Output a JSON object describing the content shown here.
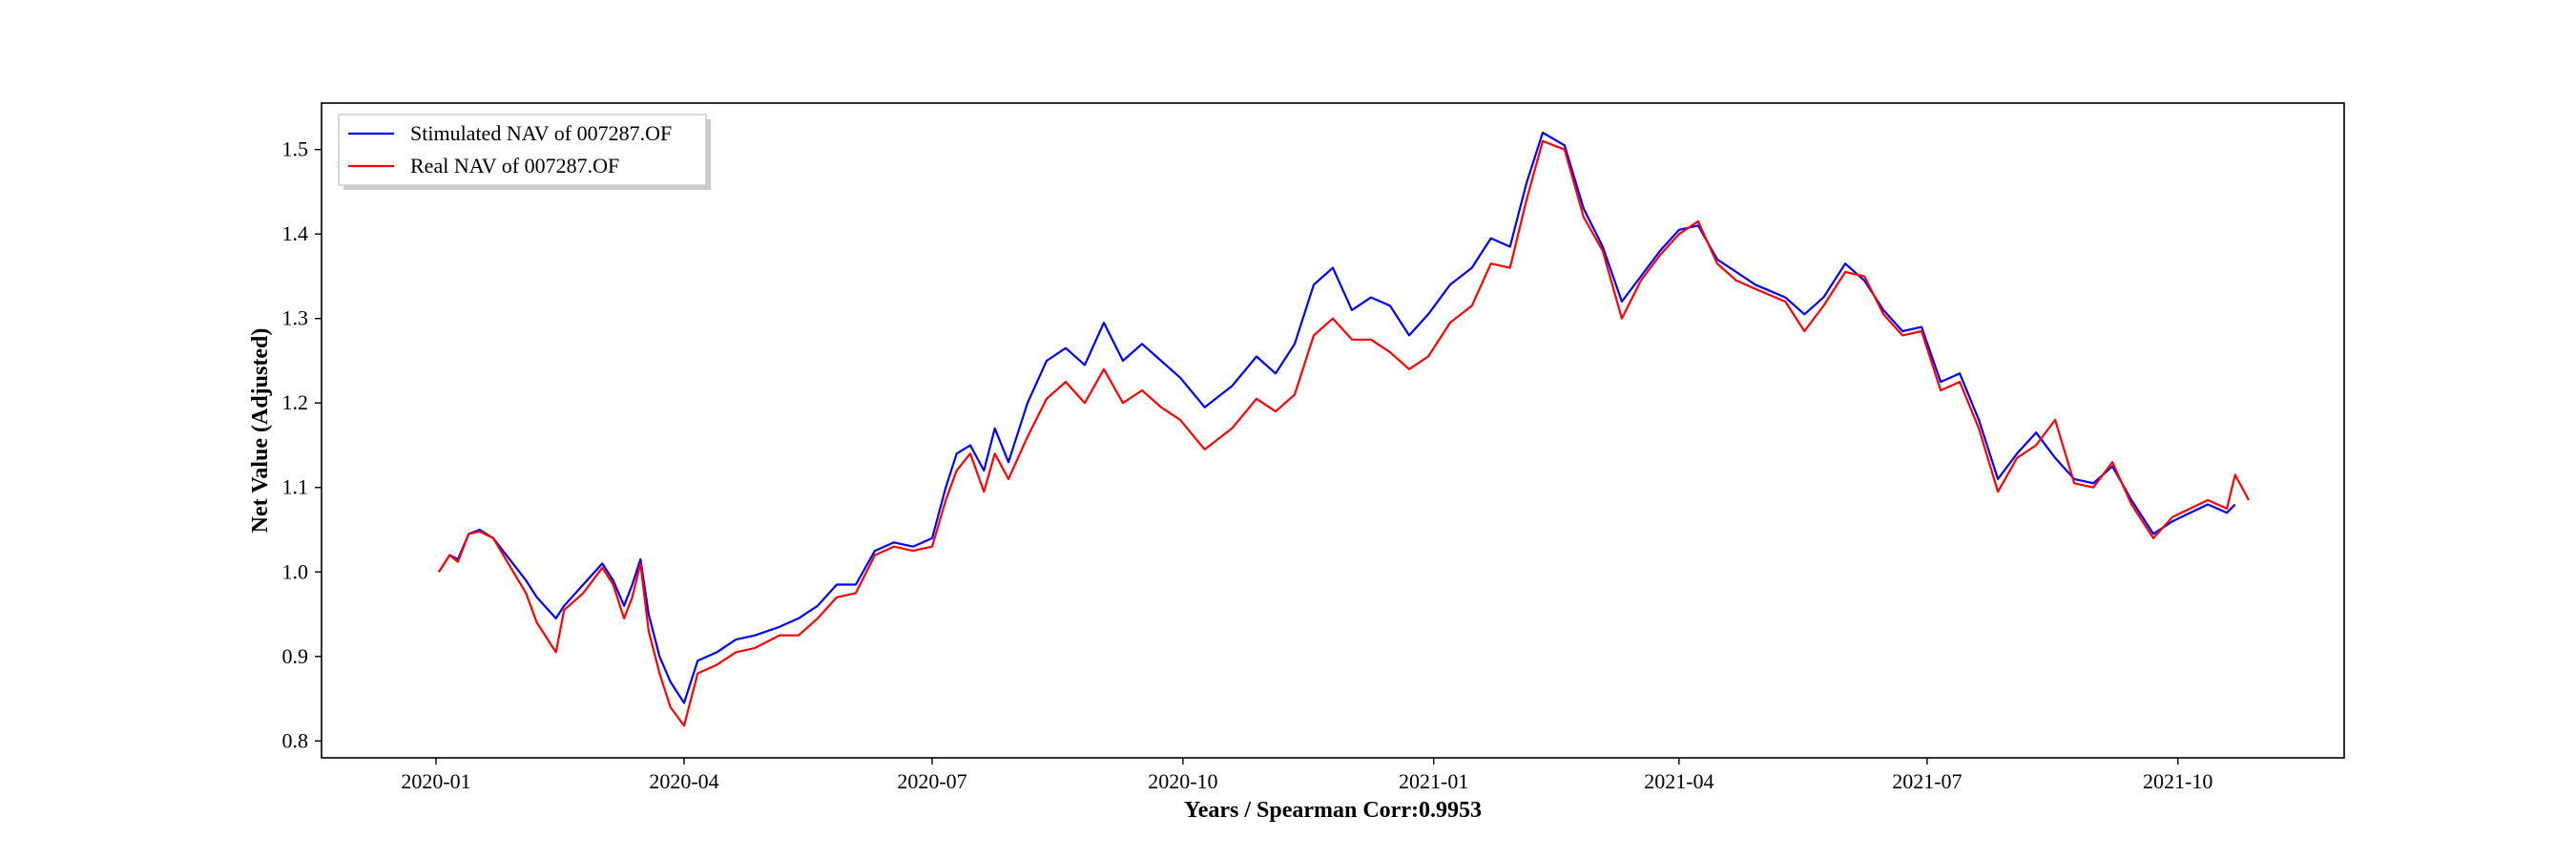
{
  "chart_data": {
    "type": "line",
    "title": "",
    "xlabel": "Years / Spearman Corr:0.9953",
    "ylabel": "Net Value (Adjusted)",
    "ylim": [
      0.78,
      1.555
    ],
    "xlim": [
      "2019-11-20",
      "2021-12-01"
    ],
    "yticks": [
      0.8,
      0.9,
      1.0,
      1.1,
      1.2,
      1.3,
      1.4,
      1.5
    ],
    "ytick_labels": [
      "0.8",
      "0.9",
      "1.0",
      "1.1",
      "1.2",
      "1.3",
      "1.4",
      "1.5"
    ],
    "xticks": [
      "2020-01-01",
      "2020-04-01",
      "2020-07-01",
      "2020-10-01",
      "2021-01-01",
      "2021-04-01",
      "2021-07-01",
      "2021-10-01"
    ],
    "xtick_labels": [
      "2020-01",
      "2020-04",
      "2020-07",
      "2020-10",
      "2021-01",
      "2021-04",
      "2021-07",
      "2021-10"
    ],
    "grid": false,
    "legend_position": "top-left",
    "series": [
      {
        "name": "Stimulated NAV of 007287.OF",
        "color": "#0000ff",
        "points": [
          [
            "2020-01-02",
            1.0
          ],
          [
            "2020-01-06",
            1.02
          ],
          [
            "2020-01-09",
            1.015
          ],
          [
            "2020-01-13",
            1.045
          ],
          [
            "2020-01-17",
            1.05
          ],
          [
            "2020-01-22",
            1.04
          ],
          [
            "2020-02-03",
            0.99
          ],
          [
            "2020-02-07",
            0.97
          ],
          [
            "2020-02-14",
            0.945
          ],
          [
            "2020-02-17",
            0.96
          ],
          [
            "2020-02-24",
            0.985
          ],
          [
            "2020-03-02",
            1.01
          ],
          [
            "2020-03-06",
            0.99
          ],
          [
            "2020-03-10",
            0.96
          ],
          [
            "2020-03-13",
            0.985
          ],
          [
            "2020-03-16",
            1.015
          ],
          [
            "2020-03-19",
            0.95
          ],
          [
            "2020-03-23",
            0.9
          ],
          [
            "2020-03-27",
            0.87
          ],
          [
            "2020-04-01",
            0.845
          ],
          [
            "2020-04-06",
            0.895
          ],
          [
            "2020-04-13",
            0.905
          ],
          [
            "2020-04-20",
            0.92
          ],
          [
            "2020-04-27",
            0.925
          ],
          [
            "2020-05-06",
            0.935
          ],
          [
            "2020-05-13",
            0.945
          ],
          [
            "2020-05-20",
            0.96
          ],
          [
            "2020-05-27",
            0.985
          ],
          [
            "2020-06-03",
            0.985
          ],
          [
            "2020-06-10",
            1.025
          ],
          [
            "2020-06-17",
            1.035
          ],
          [
            "2020-06-24",
            1.03
          ],
          [
            "2020-07-01",
            1.04
          ],
          [
            "2020-07-06",
            1.1
          ],
          [
            "2020-07-10",
            1.14
          ],
          [
            "2020-07-15",
            1.15
          ],
          [
            "2020-07-20",
            1.12
          ],
          [
            "2020-07-24",
            1.17
          ],
          [
            "2020-07-29",
            1.13
          ],
          [
            "2020-08-05",
            1.2
          ],
          [
            "2020-08-12",
            1.25
          ],
          [
            "2020-08-19",
            1.265
          ],
          [
            "2020-08-26",
            1.245
          ],
          [
            "2020-09-02",
            1.295
          ],
          [
            "2020-09-09",
            1.25
          ],
          [
            "2020-09-16",
            1.27
          ],
          [
            "2020-09-23",
            1.25
          ],
          [
            "2020-09-30",
            1.23
          ],
          [
            "2020-10-09",
            1.195
          ],
          [
            "2020-10-19",
            1.22
          ],
          [
            "2020-10-28",
            1.255
          ],
          [
            "2020-11-04",
            1.235
          ],
          [
            "2020-11-11",
            1.27
          ],
          [
            "2020-11-18",
            1.34
          ],
          [
            "2020-11-25",
            1.36
          ],
          [
            "2020-12-02",
            1.31
          ],
          [
            "2020-12-09",
            1.325
          ],
          [
            "2020-12-16",
            1.315
          ],
          [
            "2020-12-23",
            1.28
          ],
          [
            "2020-12-30",
            1.305
          ],
          [
            "2021-01-07",
            1.34
          ],
          [
            "2021-01-15",
            1.36
          ],
          [
            "2021-01-22",
            1.395
          ],
          [
            "2021-01-29",
            1.385
          ],
          [
            "2021-02-04",
            1.46
          ],
          [
            "2021-02-10",
            1.52
          ],
          [
            "2021-02-18",
            1.505
          ],
          [
            "2021-02-25",
            1.43
          ],
          [
            "2021-03-04",
            1.385
          ],
          [
            "2021-03-11",
            1.32
          ],
          [
            "2021-03-18",
            1.35
          ],
          [
            "2021-03-25",
            1.38
          ],
          [
            "2021-04-01",
            1.405
          ],
          [
            "2021-04-08",
            1.41
          ],
          [
            "2021-04-15",
            1.37
          ],
          [
            "2021-04-22",
            1.355
          ],
          [
            "2021-04-29",
            1.34
          ],
          [
            "2021-05-10",
            1.325
          ],
          [
            "2021-05-17",
            1.305
          ],
          [
            "2021-05-24",
            1.325
          ],
          [
            "2021-06-01",
            1.365
          ],
          [
            "2021-06-08",
            1.345
          ],
          [
            "2021-06-15",
            1.31
          ],
          [
            "2021-06-22",
            1.285
          ],
          [
            "2021-06-29",
            1.29
          ],
          [
            "2021-07-06",
            1.225
          ],
          [
            "2021-07-13",
            1.235
          ],
          [
            "2021-07-20",
            1.18
          ],
          [
            "2021-07-27",
            1.11
          ],
          [
            "2021-08-03",
            1.14
          ],
          [
            "2021-08-10",
            1.165
          ],
          [
            "2021-08-17",
            1.135
          ],
          [
            "2021-08-24",
            1.11
          ],
          [
            "2021-08-31",
            1.105
          ],
          [
            "2021-09-07",
            1.125
          ],
          [
            "2021-09-14",
            1.085
          ],
          [
            "2021-09-22",
            1.045
          ],
          [
            "2021-09-29",
            1.06
          ],
          [
            "2021-10-12",
            1.08
          ],
          [
            "2021-10-19",
            1.07
          ],
          [
            "2021-10-22",
            1.08
          ]
        ]
      },
      {
        "name": "Real NAV of 007287.OF",
        "color": "#ff0000",
        "points": [
          [
            "2020-01-02",
            1.0
          ],
          [
            "2020-01-06",
            1.02
          ],
          [
            "2020-01-09",
            1.012
          ],
          [
            "2020-01-13",
            1.045
          ],
          [
            "2020-01-17",
            1.048
          ],
          [
            "2020-01-22",
            1.04
          ],
          [
            "2020-02-03",
            0.975
          ],
          [
            "2020-02-07",
            0.94
          ],
          [
            "2020-02-14",
            0.905
          ],
          [
            "2020-02-17",
            0.955
          ],
          [
            "2020-02-24",
            0.975
          ],
          [
            "2020-03-02",
            1.005
          ],
          [
            "2020-03-06",
            0.985
          ],
          [
            "2020-03-10",
            0.945
          ],
          [
            "2020-03-13",
            0.97
          ],
          [
            "2020-03-16",
            1.01
          ],
          [
            "2020-03-19",
            0.93
          ],
          [
            "2020-03-23",
            0.88
          ],
          [
            "2020-03-27",
            0.84
          ],
          [
            "2020-04-01",
            0.818
          ],
          [
            "2020-04-06",
            0.88
          ],
          [
            "2020-04-13",
            0.89
          ],
          [
            "2020-04-20",
            0.905
          ],
          [
            "2020-04-27",
            0.91
          ],
          [
            "2020-05-06",
            0.925
          ],
          [
            "2020-05-13",
            0.925
          ],
          [
            "2020-05-20",
            0.945
          ],
          [
            "2020-05-27",
            0.97
          ],
          [
            "2020-06-03",
            0.975
          ],
          [
            "2020-06-10",
            1.02
          ],
          [
            "2020-06-17",
            1.03
          ],
          [
            "2020-06-24",
            1.025
          ],
          [
            "2020-07-01",
            1.03
          ],
          [
            "2020-07-06",
            1.085
          ],
          [
            "2020-07-10",
            1.12
          ],
          [
            "2020-07-15",
            1.14
          ],
          [
            "2020-07-20",
            1.095
          ],
          [
            "2020-07-24",
            1.14
          ],
          [
            "2020-07-29",
            1.11
          ],
          [
            "2020-08-05",
            1.16
          ],
          [
            "2020-08-12",
            1.205
          ],
          [
            "2020-08-19",
            1.225
          ],
          [
            "2020-08-26",
            1.2
          ],
          [
            "2020-09-02",
            1.24
          ],
          [
            "2020-09-09",
            1.2
          ],
          [
            "2020-09-16",
            1.215
          ],
          [
            "2020-09-23",
            1.195
          ],
          [
            "2020-09-30",
            1.18
          ],
          [
            "2020-10-09",
            1.145
          ],
          [
            "2020-10-19",
            1.17
          ],
          [
            "2020-10-28",
            1.205
          ],
          [
            "2020-11-04",
            1.19
          ],
          [
            "2020-11-11",
            1.21
          ],
          [
            "2020-11-18",
            1.28
          ],
          [
            "2020-11-25",
            1.3
          ],
          [
            "2020-12-02",
            1.275
          ],
          [
            "2020-12-09",
            1.275
          ],
          [
            "2020-12-16",
            1.26
          ],
          [
            "2020-12-23",
            1.24
          ],
          [
            "2020-12-30",
            1.255
          ],
          [
            "2021-01-07",
            1.295
          ],
          [
            "2021-01-15",
            1.315
          ],
          [
            "2021-01-22",
            1.365
          ],
          [
            "2021-01-29",
            1.36
          ],
          [
            "2021-02-04",
            1.44
          ],
          [
            "2021-02-10",
            1.51
          ],
          [
            "2021-02-18",
            1.5
          ],
          [
            "2021-02-25",
            1.42
          ],
          [
            "2021-03-04",
            1.38
          ],
          [
            "2021-03-11",
            1.3
          ],
          [
            "2021-03-18",
            1.345
          ],
          [
            "2021-03-25",
            1.375
          ],
          [
            "2021-04-01",
            1.4
          ],
          [
            "2021-04-08",
            1.415
          ],
          [
            "2021-04-15",
            1.365
          ],
          [
            "2021-04-22",
            1.345
          ],
          [
            "2021-04-29",
            1.335
          ],
          [
            "2021-05-10",
            1.32
          ],
          [
            "2021-05-17",
            1.285
          ],
          [
            "2021-05-24",
            1.315
          ],
          [
            "2021-06-01",
            1.355
          ],
          [
            "2021-06-08",
            1.35
          ],
          [
            "2021-06-15",
            1.305
          ],
          [
            "2021-06-22",
            1.28
          ],
          [
            "2021-06-29",
            1.285
          ],
          [
            "2021-07-06",
            1.215
          ],
          [
            "2021-07-13",
            1.225
          ],
          [
            "2021-07-20",
            1.17
          ],
          [
            "2021-07-27",
            1.095
          ],
          [
            "2021-08-03",
            1.135
          ],
          [
            "2021-08-10",
            1.15
          ],
          [
            "2021-08-17",
            1.18
          ],
          [
            "2021-08-24",
            1.105
          ],
          [
            "2021-08-31",
            1.1
          ],
          [
            "2021-09-07",
            1.13
          ],
          [
            "2021-09-14",
            1.08
          ],
          [
            "2021-09-22",
            1.04
          ],
          [
            "2021-09-29",
            1.065
          ],
          [
            "2021-10-12",
            1.085
          ],
          [
            "2021-10-19",
            1.075
          ],
          [
            "2021-10-22",
            1.115
          ],
          [
            "2021-10-27",
            1.085
          ]
        ]
      }
    ]
  }
}
